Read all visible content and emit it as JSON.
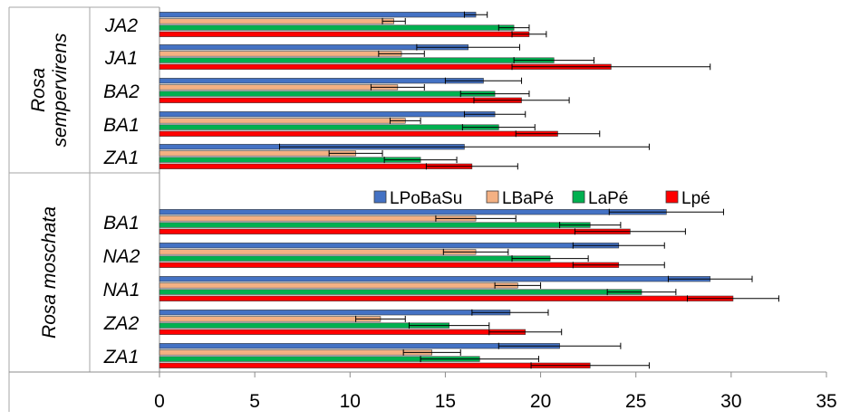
{
  "chart_data": {
    "type": "bar",
    "orientation": "horizontal",
    "xlim": [
      0,
      35
    ],
    "x_ticks": [
      "0",
      "5",
      "10",
      "15",
      "20",
      "25",
      "30",
      "35"
    ],
    "grid": false,
    "legend_position": "middle",
    "legend": [
      "LPoBaSu",
      "LBaPé",
      "LaPé",
      "Lpé"
    ],
    "groups": [
      {
        "name": "Rosa sempervirens",
        "categories": [
          "JA2",
          "JA1",
          "BA2",
          "BA1",
          "ZA1"
        ]
      },
      {
        "name": "Rosa moschata",
        "categories": [
          "BA1",
          "NA2",
          "NA1",
          "ZA2",
          "ZA1"
        ]
      }
    ],
    "series": [
      {
        "name": "LPoBaSu",
        "color": "#4472C4",
        "values": [
          16.6,
          16.2,
          17.0,
          17.6,
          16.0,
          26.6,
          24.1,
          28.9,
          18.4,
          21.0
        ],
        "errors": [
          0.6,
          2.7,
          2.0,
          1.6,
          9.7,
          3.0,
          2.4,
          2.2,
          2.0,
          3.2
        ]
      },
      {
        "name": "LBaPé",
        "color": "#F4B183",
        "values": [
          12.3,
          12.7,
          12.5,
          12.9,
          10.3,
          16.6,
          16.6,
          18.8,
          11.6,
          14.3
        ],
        "errors": [
          0.6,
          1.2,
          1.4,
          0.8,
          1.4,
          2.1,
          1.7,
          1.2,
          1.3,
          1.5
        ]
      },
      {
        "name": "LaPé",
        "color": "#00B050",
        "values": [
          18.6,
          20.7,
          17.6,
          17.8,
          13.7,
          22.6,
          20.5,
          25.3,
          15.2,
          16.8
        ],
        "errors": [
          0.8,
          2.1,
          1.8,
          1.9,
          1.9,
          1.6,
          2.0,
          1.8,
          2.1,
          3.1
        ]
      },
      {
        "name": "Lpé",
        "color": "#FF0000",
        "values": [
          19.4,
          23.7,
          19.0,
          20.9,
          16.4,
          24.7,
          24.1,
          30.1,
          19.2,
          22.6
        ],
        "errors": [
          0.9,
          5.2,
          2.5,
          2.2,
          2.4,
          2.9,
          2.4,
          2.4,
          1.9,
          3.1
        ]
      }
    ]
  }
}
